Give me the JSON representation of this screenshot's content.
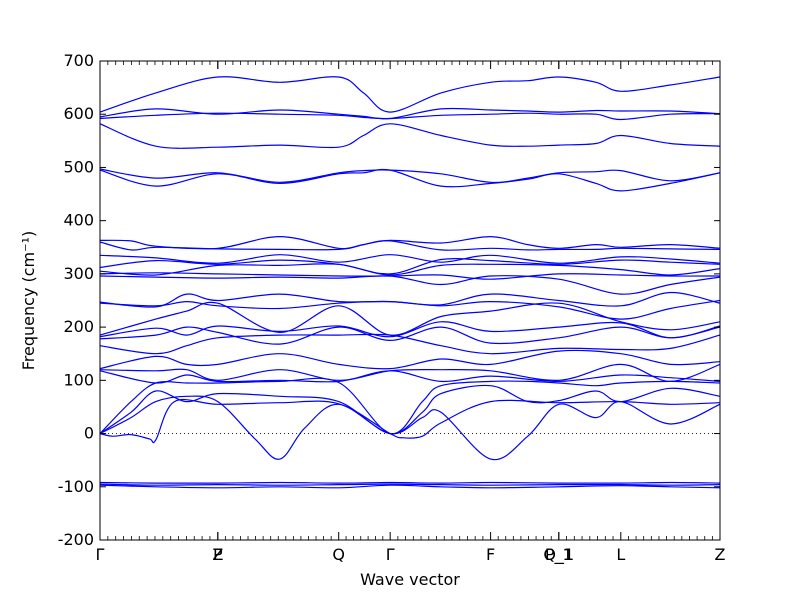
{
  "chart_data": {
    "type": "line",
    "title": "",
    "xlabel": "Wave vector",
    "ylabel": "Frequency (cm⁻¹)",
    "ylabel_unit": "(cm⁻¹)",
    "ylim": [
      -200,
      700
    ],
    "yticks": [
      -200,
      -100,
      0,
      100,
      200,
      300,
      400,
      500,
      600,
      700
    ],
    "xlim": [
      0,
      1
    ],
    "high_symmetry_points": [
      {
        "label": "Γ",
        "x": 0.0
      },
      {
        "label": "P",
        "x": 0.19
      },
      {
        "label": "Z",
        "x": 0.19
      },
      {
        "label": "Q",
        "x": 0.385
      },
      {
        "label": "Γ",
        "x": 0.468
      },
      {
        "label": "F",
        "x": 0.63
      },
      {
        "label": "P_1",
        "x": 0.74
      },
      {
        "label": "Q_1",
        "x": 0.74
      },
      {
        "label": "L",
        "x": 0.84
      },
      {
        "label": "Z",
        "x": 1.0
      }
    ],
    "zero_line": true,
    "grid": false,
    "series": [
      {
        "values_x": [
          0,
          0.09,
          0.19,
          0.29,
          0.385,
          0.425,
          0.468,
          0.55,
          0.63,
          0.69,
          0.74,
          0.8,
          0.84,
          0.92,
          1.0
        ],
        "values_y": [
          604,
          640,
          670,
          660,
          670,
          640,
          604,
          640,
          660,
          663,
          670,
          660,
          643,
          655,
          670
        ]
      },
      {
        "values_x": [
          0,
          0.09,
          0.19,
          0.29,
          0.385,
          0.425,
          0.468,
          0.55,
          0.63,
          0.69,
          0.74,
          0.8,
          0.84,
          0.92,
          1.0
        ],
        "values_y": [
          595,
          610,
          600,
          608,
          600,
          596,
          592,
          610,
          608,
          606,
          604,
          607,
          606,
          606,
          601
        ]
      },
      {
        "values_x": [
          0,
          0.09,
          0.19,
          0.29,
          0.385,
          0.425,
          0.468,
          0.55,
          0.63,
          0.69,
          0.74,
          0.8,
          0.84,
          0.92,
          1.0
        ],
        "values_y": [
          592,
          598,
          602,
          600,
          598,
          594,
          592,
          598,
          600,
          602,
          600,
          600,
          590,
          600,
          601
        ]
      },
      {
        "values_x": [
          0,
          0.09,
          0.19,
          0.29,
          0.385,
          0.425,
          0.468,
          0.55,
          0.63,
          0.69,
          0.74,
          0.8,
          0.84,
          0.92,
          1.0
        ],
        "values_y": [
          582,
          540,
          538,
          542,
          538,
          560,
          582,
          560,
          542,
          540,
          542,
          545,
          560,
          545,
          540
        ]
      },
      {
        "values_x": [
          0,
          0.09,
          0.19,
          0.29,
          0.385,
          0.425,
          0.468,
          0.55,
          0.63,
          0.69,
          0.74,
          0.8,
          0.84,
          0.92,
          1.0
        ],
        "values_y": [
          497,
          480,
          490,
          472,
          490,
          494,
          495,
          488,
          472,
          480,
          490,
          492,
          494,
          475,
          490
        ]
      },
      {
        "values_x": [
          0,
          0.09,
          0.19,
          0.29,
          0.385,
          0.425,
          0.468,
          0.55,
          0.63,
          0.69,
          0.74,
          0.8,
          0.84,
          0.92,
          1.0
        ],
        "values_y": [
          495,
          465,
          488,
          470,
          488,
          490,
          495,
          465,
          470,
          478,
          488,
          470,
          456,
          470,
          490
        ]
      },
      {
        "values_x": [
          0,
          0.05,
          0.09,
          0.19,
          0.29,
          0.385,
          0.425,
          0.468,
          0.55,
          0.63,
          0.69,
          0.74,
          0.8,
          0.84,
          0.92,
          1.0
        ],
        "values_y": [
          363,
          362,
          352,
          348,
          370,
          348,
          355,
          363,
          358,
          370,
          355,
          348,
          355,
          350,
          355,
          348
        ]
      },
      {
        "values_x": [
          0,
          0.05,
          0.09,
          0.19,
          0.29,
          0.385,
          0.425,
          0.468,
          0.55,
          0.63,
          0.69,
          0.74,
          0.8,
          0.84,
          0.92,
          1.0
        ],
        "values_y": [
          360,
          345,
          350,
          347,
          346,
          346,
          355,
          362,
          345,
          348,
          345,
          346,
          346,
          348,
          347,
          346
        ]
      },
      {
        "values_x": [
          0,
          0.09,
          0.19,
          0.29,
          0.385,
          0.468,
          0.55,
          0.63,
          0.74,
          0.84,
          0.92,
          1.0
        ],
        "values_y": [
          335,
          330,
          320,
          336,
          322,
          336,
          322,
          335,
          320,
          332,
          328,
          320
        ]
      },
      {
        "values_x": [
          0,
          0.09,
          0.19,
          0.29,
          0.385,
          0.468,
          0.55,
          0.63,
          0.74,
          0.84,
          0.92,
          1.0
        ],
        "values_y": [
          312,
          325,
          318,
          326,
          318,
          300,
          327,
          325,
          318,
          326,
          322,
          318
        ]
      },
      {
        "values_x": [
          0,
          0.09,
          0.19,
          0.29,
          0.385,
          0.468,
          0.55,
          0.63,
          0.74,
          0.84,
          0.92,
          1.0
        ],
        "values_y": [
          305,
          298,
          316,
          316,
          318,
          298,
          316,
          318,
          316,
          308,
          298,
          310
        ]
      },
      {
        "values_x": [
          0,
          0.09,
          0.19,
          0.29,
          0.385,
          0.468,
          0.55,
          0.63,
          0.74,
          0.84,
          0.92,
          1.0
        ],
        "values_y": [
          300,
          302,
          300,
          298,
          296,
          296,
          298,
          290,
          300,
          298,
          296,
          296
        ]
      },
      {
        "values_x": [
          0,
          0.09,
          0.19,
          0.29,
          0.385,
          0.468,
          0.55,
          0.63,
          0.74,
          0.84,
          0.92,
          1.0
        ],
        "values_y": [
          296,
          294,
          292,
          294,
          292,
          296,
          280,
          296,
          290,
          262,
          280,
          294
        ]
      },
      {
        "values_x": [
          0,
          0.09,
          0.14,
          0.19,
          0.29,
          0.385,
          0.468,
          0.55,
          0.63,
          0.74,
          0.84,
          0.92,
          1.0
        ],
        "values_y": [
          247,
          238,
          262,
          250,
          262,
          248,
          248,
          242,
          262,
          250,
          240,
          265,
          245
        ]
      },
      {
        "values_x": [
          0,
          0.09,
          0.14,
          0.19,
          0.29,
          0.385,
          0.468,
          0.55,
          0.63,
          0.74,
          0.84,
          0.92,
          1.0
        ],
        "values_y": [
          245,
          240,
          248,
          240,
          235,
          245,
          248,
          240,
          248,
          238,
          215,
          235,
          250
        ]
      },
      {
        "values_x": [
          0,
          0.09,
          0.14,
          0.19,
          0.29,
          0.385,
          0.468,
          0.55,
          0.63,
          0.74,
          0.84,
          0.92,
          1.0
        ],
        "values_y": [
          185,
          215,
          230,
          245,
          190,
          240,
          185,
          220,
          230,
          245,
          210,
          195,
          210
        ]
      },
      {
        "values_x": [
          0,
          0.09,
          0.14,
          0.19,
          0.29,
          0.385,
          0.468,
          0.55,
          0.63,
          0.74,
          0.84,
          0.92,
          1.0
        ],
        "values_y": [
          182,
          198,
          185,
          202,
          192,
          202,
          182,
          210,
          192,
          200,
          208,
          180,
          202
        ]
      },
      {
        "values_x": [
          0,
          0.09,
          0.14,
          0.19,
          0.29,
          0.385,
          0.468,
          0.55,
          0.63,
          0.74,
          0.84,
          0.92,
          1.0
        ],
        "values_y": [
          178,
          185,
          200,
          190,
          168,
          200,
          175,
          200,
          170,
          180,
          200,
          180,
          200
        ]
      },
      {
        "values_x": [
          0,
          0.09,
          0.14,
          0.19,
          0.29,
          0.385,
          0.468,
          0.55,
          0.63,
          0.74,
          0.84,
          0.92,
          1.0
        ],
        "values_y": [
          165,
          150,
          165,
          180,
          185,
          185,
          185,
          165,
          150,
          160,
          158,
          160,
          185
        ]
      },
      {
        "values_x": [
          0,
          0.09,
          0.14,
          0.19,
          0.29,
          0.385,
          0.468,
          0.55,
          0.63,
          0.74,
          0.84,
          0.92,
          1.0
        ],
        "values_y": [
          122,
          145,
          130,
          130,
          150,
          130,
          122,
          140,
          130,
          155,
          150,
          130,
          135
        ]
      },
      {
        "values_x": [
          0,
          0.09,
          0.14,
          0.19,
          0.29,
          0.385,
          0.468,
          0.55,
          0.63,
          0.74,
          0.84,
          0.92,
          1.0
        ],
        "values_y": [
          120,
          118,
          120,
          100,
          120,
          100,
          118,
          120,
          118,
          100,
          130,
          98,
          130
        ]
      },
      {
        "values_x": [
          0,
          0.09,
          0.14,
          0.19,
          0.29,
          0.385,
          0.468,
          0.55,
          0.63,
          0.74,
          0.84,
          0.92,
          1.0
        ],
        "values_y": [
          118,
          95,
          110,
          98,
          100,
          98,
          118,
          98,
          108,
          98,
          110,
          105,
          98
        ]
      },
      {
        "values_x": [
          0,
          0.05,
          0.09,
          0.14,
          0.19,
          0.29,
          0.385,
          0.468,
          0.52,
          0.55,
          0.63,
          0.69,
          0.74,
          0.8,
          0.84,
          0.92,
          1.0
        ],
        "values_y": [
          0,
          60,
          95,
          95,
          95,
          98,
          96,
          0,
          60,
          90,
          98,
          98,
          95,
          90,
          95,
          98,
          95
        ]
      },
      {
        "values_x": [
          0,
          0.05,
          0.09,
          0.14,
          0.19,
          0.29,
          0.385,
          0.468,
          0.52,
          0.55,
          0.63,
          0.69,
          0.74,
          0.8,
          0.84,
          0.92,
          1.0
        ],
        "values_y": [
          0,
          40,
          80,
          60,
          75,
          70,
          60,
          0,
          40,
          75,
          90,
          60,
          62,
          80,
          60,
          85,
          70
        ]
      },
      {
        "values_x": [
          0,
          0.05,
          0.09,
          0.14,
          0.19,
          0.25,
          0.29,
          0.33,
          0.385,
          0.468,
          0.52,
          0.55,
          0.63,
          0.69,
          0.74,
          0.8,
          0.84,
          0.92,
          1.0
        ],
        "values_y": [
          0,
          30,
          60,
          70,
          60,
          -10,
          -48,
          10,
          55,
          0,
          30,
          40,
          -48,
          -5,
          55,
          30,
          60,
          18,
          55
        ]
      },
      {
        "values_x": [
          0,
          0.02,
          0.05,
          0.08,
          0.09,
          0.12,
          0.19,
          0.29,
          0.385,
          0.468,
          0.49,
          0.52,
          0.55,
          0.63,
          0.74,
          0.84,
          0.92,
          1.0
        ],
        "values_y": [
          0,
          -5,
          -2,
          -10,
          -12,
          60,
          55,
          58,
          56,
          0,
          -8,
          -5,
          20,
          60,
          58,
          60,
          55,
          58
        ]
      },
      {
        "values_x": [
          0,
          0.09,
          0.19,
          0.29,
          0.385,
          0.468,
          0.55,
          0.63,
          0.74,
          0.84,
          0.92,
          1.0
        ],
        "values_y": [
          -92,
          -93,
          -93,
          -92,
          -93,
          -92,
          -93,
          -92,
          -93,
          -93,
          -92,
          -93
        ]
      },
      {
        "values_x": [
          0,
          0.09,
          0.19,
          0.29,
          0.385,
          0.468,
          0.55,
          0.63,
          0.74,
          0.84,
          0.92,
          1.0
        ],
        "values_y": [
          -95,
          -97,
          -96,
          -97,
          -96,
          -95,
          -96,
          -97,
          -96,
          -96,
          -97,
          -96
        ]
      },
      {
        "values_x": [
          0,
          0.09,
          0.19,
          0.29,
          0.385,
          0.468,
          0.55,
          0.63,
          0.74,
          0.84,
          0.92,
          1.0
        ],
        "values_y": [
          -97,
          -100,
          -102,
          -100,
          -102,
          -97,
          -100,
          -102,
          -100,
          -98,
          -100,
          -102
        ]
      }
    ]
  }
}
